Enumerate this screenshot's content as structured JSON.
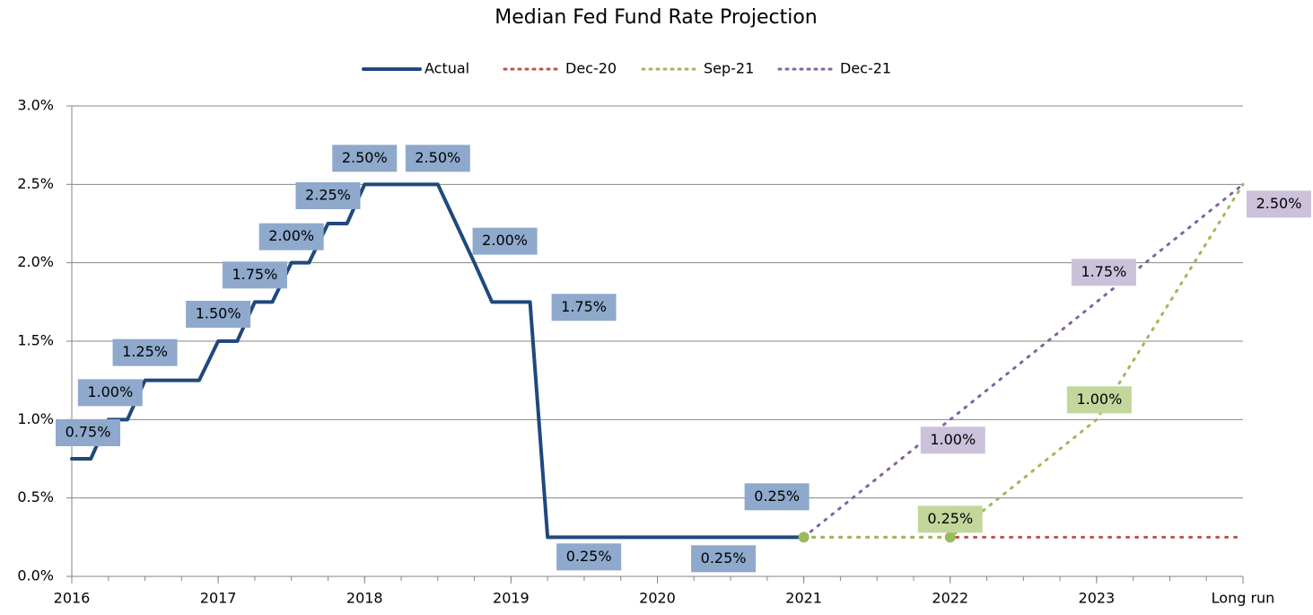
{
  "chart_data": {
    "type": "line",
    "title": "Median Fed Fund Rate Projection",
    "xlim": [
      2016,
      2024
    ],
    "xticks": [
      2016,
      2017,
      2018,
      2019,
      2020,
      2021,
      2022,
      2023,
      {
        "value": 2024,
        "label": "Long run"
      }
    ],
    "ylim": [
      0,
      3
    ],
    "yticks": [
      {
        "value": 0,
        "label": "0.0%"
      },
      {
        "value": 0.5,
        "label": "0.5%"
      },
      {
        "value": 1,
        "label": "1.0%"
      },
      {
        "value": 1.5,
        "label": "1.5%"
      },
      {
        "value": 2,
        "label": "2.0%"
      },
      {
        "value": 2.5,
        "label": "2.5%"
      },
      {
        "value": 3,
        "label": "3.0%"
      }
    ],
    "grid": true,
    "legend": "top",
    "series": [
      {
        "name": "Actual",
        "color": "#1f497d",
        "label_color": "#8ea9cc",
        "dash": "solid",
        "x": [
          2016,
          2016.13,
          2016.25,
          2016.38,
          2016.5,
          2016.87,
          2017,
          2017.13,
          2017.25,
          2017.37,
          2017.5,
          2017.62,
          2017.75,
          2017.88,
          2018,
          2018.5,
          2018.75,
          2018.87,
          2019.13,
          2019.25,
          2020.5,
          2021
        ],
        "values": [
          0.75,
          0.75,
          1,
          1,
          1.25,
          1.25,
          1.5,
          1.5,
          1.75,
          1.75,
          2,
          2,
          2.25,
          2.25,
          2.5,
          2.5,
          2,
          1.75,
          1.75,
          0.25,
          0.25,
          0.25
        ],
        "value_labels": [
          "0.75%",
          null,
          "1.00%",
          null,
          "1.25%",
          null,
          "1.50%",
          null,
          "1.75%",
          null,
          "2.00%",
          null,
          "2.25%",
          null,
          "2.50%",
          "2.50%",
          "2.00%",
          null,
          "1.75%",
          "0.25%",
          "0.25%",
          "0.25%"
        ]
      },
      {
        "name": "Dec-20",
        "color": "#c0504d",
        "dash": "dotted",
        "x": [
          2021,
          2022,
          2023,
          2024
        ],
        "values": [
          0.25,
          0.25,
          0.25,
          0.25
        ]
      },
      {
        "name": "Sep-21",
        "color": "#9bbb59",
        "label_color": "#c3d69b",
        "dash": "dotted",
        "x": [
          2021,
          2022,
          2023,
          2024
        ],
        "values": [
          0.25,
          0.25,
          1,
          2.5
        ],
        "value_labels": [
          null,
          "0.25%",
          "1.00%",
          null
        ]
      },
      {
        "name": "Dec-21",
        "color": "#8064a2",
        "label_color": "#ccc1da",
        "dash": "dotted",
        "x": [
          2021,
          2022,
          2023,
          2024
        ],
        "values": [
          0.25,
          1,
          1.75,
          2.5
        ],
        "value_labels": [
          null,
          "1.00%",
          "1.75%",
          "2.50%"
        ]
      }
    ]
  }
}
